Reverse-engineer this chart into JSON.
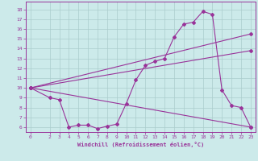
{
  "bg_color": "#cceaea",
  "line_color": "#993399",
  "grid_color": "#aacccc",
  "xlabel": "Windchill (Refroidissement éolien,°C)",
  "ylabel_ticks": [
    6,
    7,
    8,
    9,
    10,
    11,
    12,
    13,
    14,
    15,
    16,
    17,
    18
  ],
  "xlim": [
    -0.5,
    23.5
  ],
  "ylim": [
    5.5,
    18.8
  ],
  "xtick_vals": [
    0,
    2,
    3,
    4,
    5,
    6,
    7,
    8,
    9,
    10,
    11,
    12,
    13,
    14,
    15,
    16,
    17,
    18,
    19,
    20,
    21,
    22,
    23
  ],
  "line1": {
    "x": [
      0,
      2,
      3,
      4,
      5,
      6,
      7,
      8,
      9,
      10,
      11,
      12,
      13,
      14,
      15,
      16,
      17,
      18,
      19,
      20,
      21,
      22,
      23
    ],
    "y": [
      10,
      9.0,
      8.8,
      6.0,
      6.2,
      6.2,
      5.85,
      6.1,
      6.3,
      8.4,
      10.8,
      12.3,
      12.7,
      13.0,
      15.2,
      16.5,
      16.7,
      17.8,
      17.5,
      9.8,
      8.2,
      8.0,
      6.0
    ]
  },
  "line2": {
    "x": [
      0,
      23
    ],
    "y": [
      10,
      15.5
    ]
  },
  "line3": {
    "x": [
      0,
      23
    ],
    "y": [
      10,
      6.0
    ]
  },
  "line4": {
    "x": [
      0,
      23
    ],
    "y": [
      10,
      13.8
    ]
  }
}
